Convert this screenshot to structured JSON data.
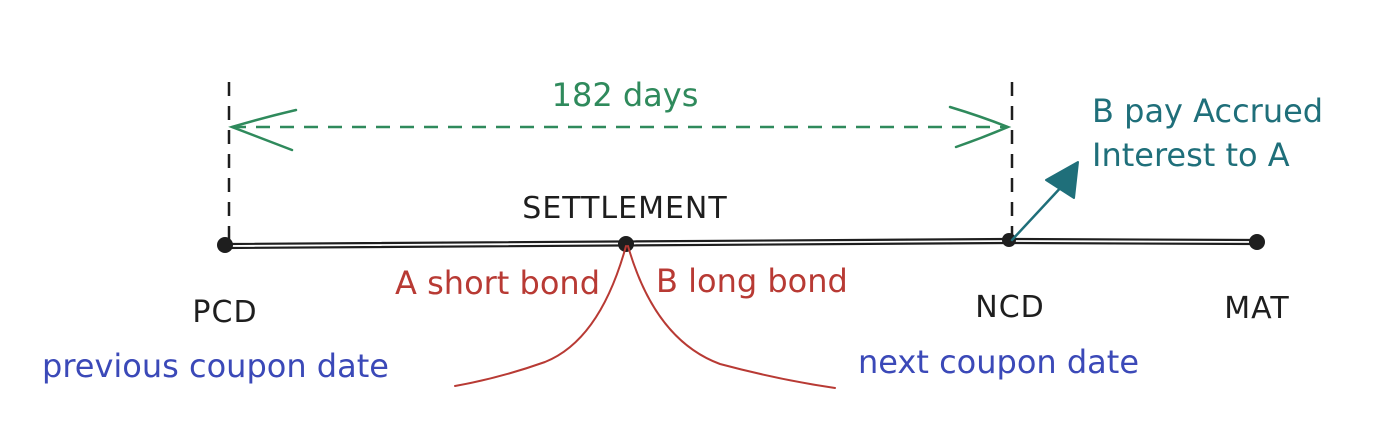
{
  "diagram": {
    "span_label": "182 days",
    "settlement_label": "SETTLEMENT",
    "points": {
      "pcd": "PCD",
      "ncd": "NCD",
      "mat": "MAT"
    },
    "descriptions": {
      "pcd": "previous coupon date",
      "ncd": "next coupon date"
    },
    "sides": {
      "left": "A short bond",
      "right": "B long bond"
    },
    "note": {
      "line1": "B pay Accrued",
      "line2": "Interest to A"
    },
    "colors": {
      "timeline": "#1e1e1e",
      "span": "#2f8a5c",
      "note": "#1f6f7a",
      "sides": "#b83a34",
      "descriptions": "#3b49b8"
    }
  }
}
